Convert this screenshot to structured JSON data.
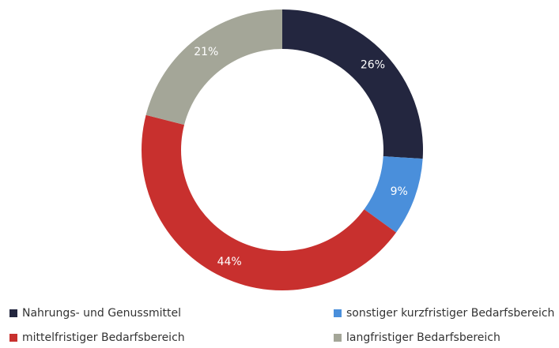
{
  "chart_data": {
    "type": "pie",
    "categories": [
      "Nahrungs- und Genussmittel",
      "sonstiger kurzfristiger Bedarfsbereich",
      "mittelfristiger Bedarfsbereich",
      "langfristiger Bedarfsbereich"
    ],
    "values": [
      26,
      9,
      44,
      21
    ],
    "value_labels": [
      "26%",
      "9%",
      "44%",
      "21%"
    ],
    "colors": [
      "#23263f",
      "#4a8fdb",
      "#c8302e",
      "#a4a698"
    ],
    "donut": true
  }
}
